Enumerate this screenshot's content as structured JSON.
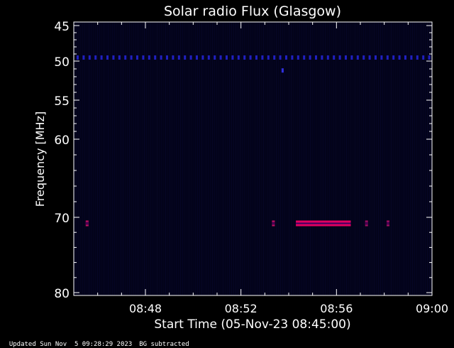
{
  "chart_data": {
    "type": "heatmap",
    "title": "Solar radio Flux (Glasgow)",
    "ylabel": "Frequency [MHz]",
    "xlabel": "Start Time (05-Nov-23 08:45:00)",
    "x_unit": "minutes",
    "x_range": [
      "08:45",
      "09:00"
    ],
    "y_range_mhz": [
      45,
      80
    ],
    "y_ticks": [
      {
        "value": 45,
        "label": "45"
      },
      {
        "value": 50,
        "label": "50"
      },
      {
        "value": 55,
        "label": "55"
      },
      {
        "value": 60,
        "label": "60"
      },
      {
        "value": 70,
        "label": "70"
      },
      {
        "value": 80,
        "label": "80"
      }
    ],
    "x_ticks": [
      {
        "time": "08:48",
        "label": "08:48"
      },
      {
        "time": "08:52",
        "label": "08:52"
      },
      {
        "time": "08:56",
        "label": "08:56"
      },
      {
        "time": "09:00",
        "label": "09:00"
      }
    ],
    "background_color": "#03031a",
    "features": [
      {
        "name": "rfi-line-49.5",
        "freq_mhz": 49.5,
        "start": "08:45",
        "end": "09:00",
        "color": "#2020c0",
        "style": "dotted"
      },
      {
        "name": "dot-51",
        "freq_mhz": 51.2,
        "start": "08:53.7",
        "end": "08:53.8",
        "color": "#3030e0",
        "style": "dot"
      },
      {
        "name": "burst-70a",
        "freq_mhz": 70.8,
        "start": "08:45.5",
        "end": "08:45.6",
        "color": "#c01060",
        "style": "blip"
      },
      {
        "name": "burst-70b",
        "freq_mhz": 70.8,
        "start": "08:53.3",
        "end": "08:53.4",
        "color": "#c01060",
        "style": "blip"
      },
      {
        "name": "burst-70c",
        "freq_mhz": 70.8,
        "start": "08:54.3",
        "end": "08:56.6",
        "color": "#e00060",
        "style": "band"
      },
      {
        "name": "burst-70d",
        "freq_mhz": 70.8,
        "start": "08:57.2",
        "end": "08:57.3",
        "color": "#a01060",
        "style": "blip"
      },
      {
        "name": "burst-70e",
        "freq_mhz": 70.8,
        "start": "08:58.1",
        "end": "08:58.2",
        "color": "#a01060",
        "style": "blip"
      }
    ]
  },
  "footer": {
    "updated": "Updated Sun Nov  5 09:28:29 2023",
    "note": "BG subtracted"
  }
}
